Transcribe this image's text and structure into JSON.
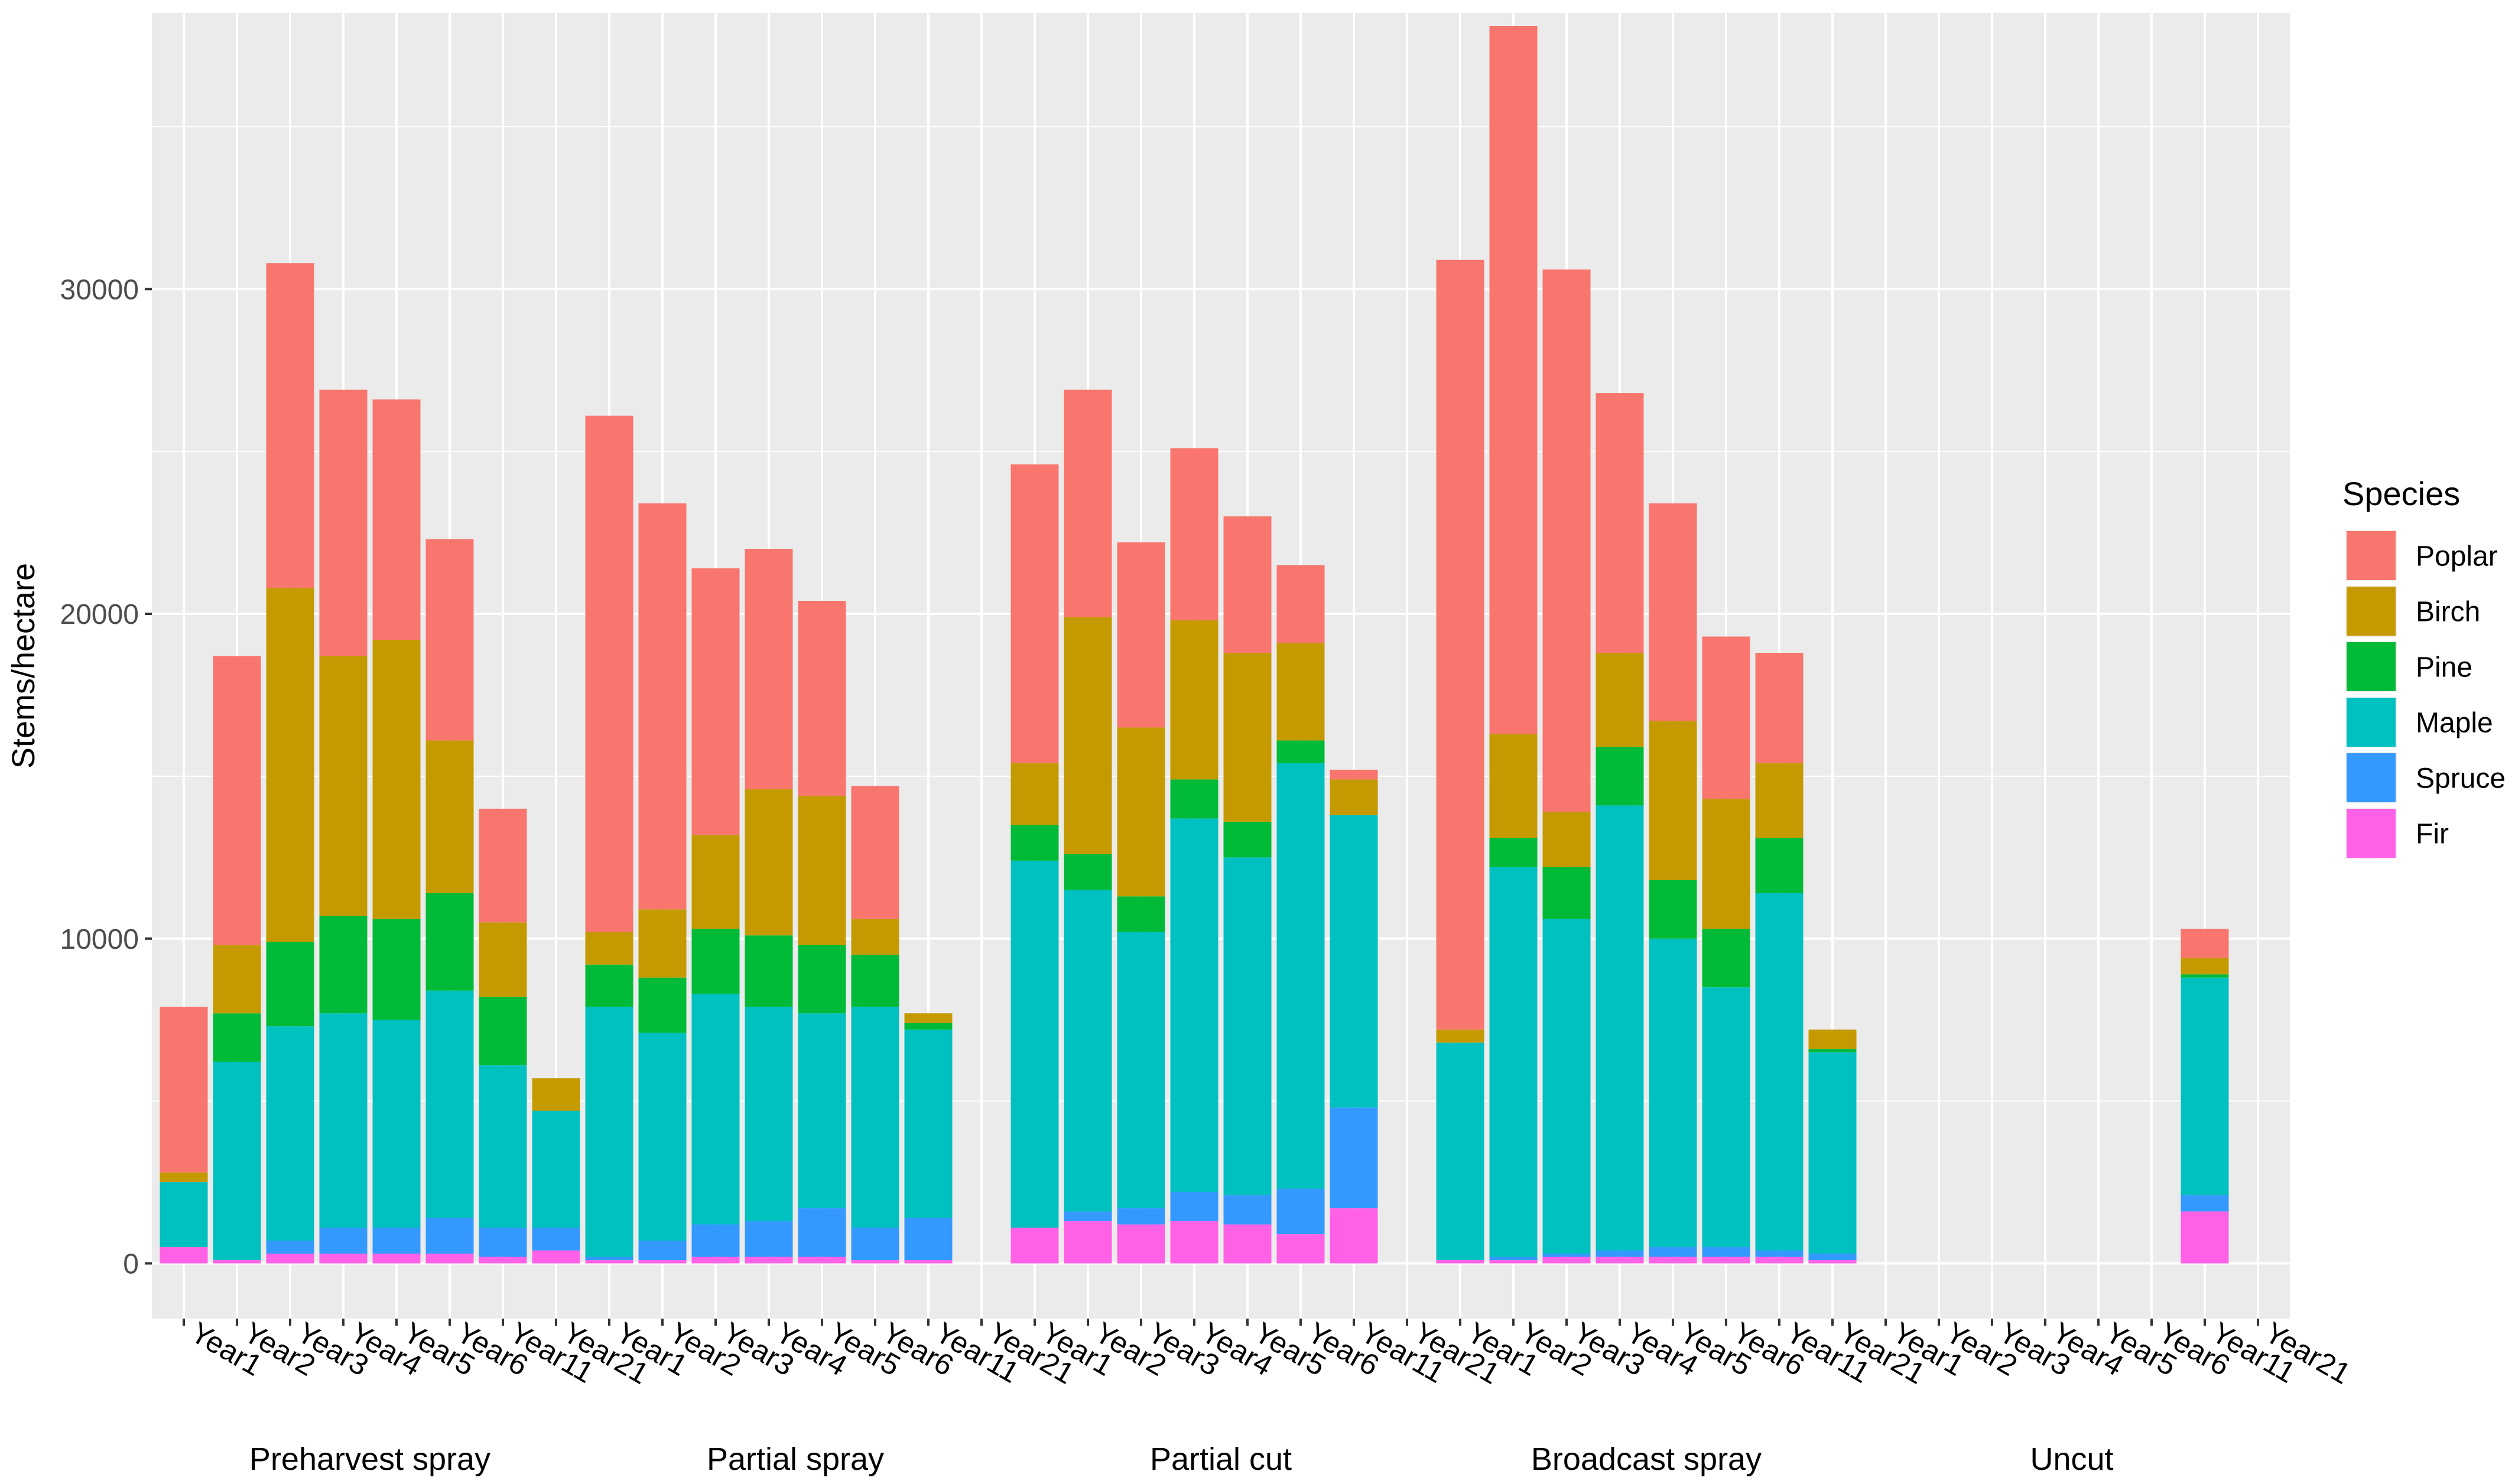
{
  "chart_data": {
    "type": "bar",
    "stacked": true,
    "ylabel": "Stems/hectare",
    "xlabel": "",
    "ylim": [
      -1700,
      38500
    ],
    "yticks": [
      0,
      10000,
      20000,
      30000
    ],
    "ytick_labels": [
      "0",
      "10000",
      "20000",
      "30000"
    ],
    "grid": true,
    "legend": {
      "title": "Species",
      "position": "right",
      "entries": [
        "Poplar",
        "Birch",
        "Pine",
        "Maple",
        "Spruce",
        "Fir"
      ]
    },
    "stack_order_bottom_to_top": [
      "Fir",
      "Spruce",
      "Maple",
      "Pine",
      "Birch",
      "Poplar"
    ],
    "colors": {
      "Poplar": "#F8766D",
      "Birch": "#C49A00",
      "Pine": "#00BA38",
      "Maple": "#00C0C0",
      "Spruce": "#3399FF",
      "Fir": "#FF61E6"
    },
    "years": [
      "Year1",
      "Year2",
      "Year3",
      "Year4",
      "Year5",
      "Year6",
      "Year11",
      "Year21"
    ],
    "groups": [
      {
        "name": "Preharvest spray",
        "bars": [
          {
            "year": "Year1",
            "Fir": 500,
            "Spruce": 0,
            "Maple": 2000,
            "Pine": 0,
            "Birch": 300,
            "Poplar": 5100
          },
          {
            "year": "Year2",
            "Fir": 100,
            "Spruce": 0,
            "Maple": 6100,
            "Pine": 1500,
            "Birch": 2100,
            "Poplar": 8900
          },
          {
            "year": "Year3",
            "Fir": 300,
            "Spruce": 400,
            "Maple": 6600,
            "Pine": 2600,
            "Birch": 10900,
            "Poplar": 10000
          },
          {
            "year": "Year4",
            "Fir": 300,
            "Spruce": 800,
            "Maple": 6600,
            "Pine": 3000,
            "Birch": 8000,
            "Poplar": 8200
          },
          {
            "year": "Year5",
            "Fir": 300,
            "Spruce": 800,
            "Maple": 6400,
            "Pine": 3100,
            "Birch": 8600,
            "Poplar": 7400
          },
          {
            "year": "Year6",
            "Fir": 300,
            "Spruce": 1100,
            "Maple": 7000,
            "Pine": 3000,
            "Birch": 4700,
            "Poplar": 6200
          },
          {
            "year": "Year11",
            "Fir": 200,
            "Spruce": 900,
            "Maple": 5000,
            "Pine": 2100,
            "Birch": 2300,
            "Poplar": 3500
          },
          {
            "year": "Year21",
            "Fir": 400,
            "Spruce": 700,
            "Maple": 3600,
            "Pine": 0,
            "Birch": 1000,
            "Poplar": 0
          }
        ]
      },
      {
        "name": "Partial spray",
        "bars": [
          {
            "year": "Year1",
            "Fir": 100,
            "Spruce": 100,
            "Maple": 7700,
            "Pine": 1300,
            "Birch": 1000,
            "Poplar": 15900
          },
          {
            "year": "Year2",
            "Fir": 100,
            "Spruce": 600,
            "Maple": 6400,
            "Pine": 1700,
            "Birch": 2100,
            "Poplar": 12500
          },
          {
            "year": "Year3",
            "Fir": 200,
            "Spruce": 1000,
            "Maple": 7100,
            "Pine": 2000,
            "Birch": 2900,
            "Poplar": 8200
          },
          {
            "year": "Year4",
            "Fir": 200,
            "Spruce": 1100,
            "Maple": 6600,
            "Pine": 2200,
            "Birch": 4500,
            "Poplar": 7400
          },
          {
            "year": "Year5",
            "Fir": 200,
            "Spruce": 1500,
            "Maple": 6000,
            "Pine": 2100,
            "Birch": 4600,
            "Poplar": 6000
          },
          {
            "year": "Year6",
            "Fir": 100,
            "Spruce": 1000,
            "Maple": 6800,
            "Pine": 1600,
            "Birch": 1100,
            "Poplar": 4100
          },
          {
            "year": "Year11",
            "Fir": 100,
            "Spruce": 1300,
            "Maple": 5800,
            "Pine": 200,
            "Birch": 300,
            "Poplar": 0
          },
          {
            "year": "Year21",
            "Fir": 0,
            "Spruce": 0,
            "Maple": 0,
            "Pine": 0,
            "Birch": 0,
            "Poplar": 0
          }
        ]
      },
      {
        "name": "Partial cut",
        "bars": [
          {
            "year": "Year1",
            "Fir": 1100,
            "Spruce": 0,
            "Maple": 11300,
            "Pine": 1100,
            "Birch": 1900,
            "Poplar": 9200
          },
          {
            "year": "Year2",
            "Fir": 1300,
            "Spruce": 300,
            "Maple": 9900,
            "Pine": 1100,
            "Birch": 7300,
            "Poplar": 7000
          },
          {
            "year": "Year3",
            "Fir": 1200,
            "Spruce": 500,
            "Maple": 8500,
            "Pine": 1100,
            "Birch": 5200,
            "Poplar": 5700
          },
          {
            "year": "Year4",
            "Fir": 1300,
            "Spruce": 900,
            "Maple": 11500,
            "Pine": 1200,
            "Birch": 4900,
            "Poplar": 5300
          },
          {
            "year": "Year5",
            "Fir": 1200,
            "Spruce": 900,
            "Maple": 10400,
            "Pine": 1100,
            "Birch": 5200,
            "Poplar": 4200
          },
          {
            "year": "Year6",
            "Fir": 900,
            "Spruce": 1400,
            "Maple": 13100,
            "Pine": 700,
            "Birch": 3000,
            "Poplar": 2400
          },
          {
            "year": "Year11",
            "Fir": 1700,
            "Spruce": 3100,
            "Maple": 9000,
            "Pine": 0,
            "Birch": 1100,
            "Poplar": 300
          },
          {
            "year": "Year21",
            "Fir": 0,
            "Spruce": 0,
            "Maple": 0,
            "Pine": 0,
            "Birch": 0,
            "Poplar": 0
          }
        ]
      },
      {
        "name": "Broadcast spray",
        "bars": [
          {
            "year": "Year1",
            "Fir": 100,
            "Spruce": 0,
            "Maple": 6700,
            "Pine": 0,
            "Birch": 400,
            "Poplar": 23700
          },
          {
            "year": "Year2",
            "Fir": 100,
            "Spruce": 100,
            "Maple": 12000,
            "Pine": 900,
            "Birch": 3200,
            "Poplar": 21800
          },
          {
            "year": "Year3",
            "Fir": 200,
            "Spruce": 100,
            "Maple": 10300,
            "Pine": 1600,
            "Birch": 1700,
            "Poplar": 16700
          },
          {
            "year": "Year4",
            "Fir": 200,
            "Spruce": 200,
            "Maple": 13700,
            "Pine": 1800,
            "Birch": 2900,
            "Poplar": 8000
          },
          {
            "year": "Year5",
            "Fir": 200,
            "Spruce": 300,
            "Maple": 9500,
            "Pine": 1800,
            "Birch": 4900,
            "Poplar": 6700
          },
          {
            "year": "Year6",
            "Fir": 200,
            "Spruce": 300,
            "Maple": 8000,
            "Pine": 1800,
            "Birch": 4000,
            "Poplar": 5000
          },
          {
            "year": "Year11",
            "Fir": 200,
            "Spruce": 200,
            "Maple": 11000,
            "Pine": 1700,
            "Birch": 2300,
            "Poplar": 3400
          },
          {
            "year": "Year21",
            "Fir": 100,
            "Spruce": 200,
            "Maple": 6200,
            "Pine": 100,
            "Birch": 600,
            "Poplar": 0
          }
        ]
      },
      {
        "name": "Uncut",
        "bars": [
          {
            "year": "Year1",
            "Fir": 0,
            "Spruce": 0,
            "Maple": 0,
            "Pine": 0,
            "Birch": 0,
            "Poplar": 0
          },
          {
            "year": "Year2",
            "Fir": 0,
            "Spruce": 0,
            "Maple": 0,
            "Pine": 0,
            "Birch": 0,
            "Poplar": 0
          },
          {
            "year": "Year3",
            "Fir": 0,
            "Spruce": 0,
            "Maple": 0,
            "Pine": 0,
            "Birch": 0,
            "Poplar": 0
          },
          {
            "year": "Year4",
            "Fir": 0,
            "Spruce": 0,
            "Maple": 0,
            "Pine": 0,
            "Birch": 0,
            "Poplar": 0
          },
          {
            "year": "Year5",
            "Fir": 0,
            "Spruce": 0,
            "Maple": 0,
            "Pine": 0,
            "Birch": 0,
            "Poplar": 0
          },
          {
            "year": "Year6",
            "Fir": 0,
            "Spruce": 0,
            "Maple": 0,
            "Pine": 0,
            "Birch": 0,
            "Poplar": 0
          },
          {
            "year": "Year11",
            "Fir": 1600,
            "Spruce": 500,
            "Maple": 6700,
            "Pine": 100,
            "Birch": 500,
            "Poplar": 900
          },
          {
            "year": "Year21",
            "Fir": 0,
            "Spruce": 0,
            "Maple": 0,
            "Pine": 0,
            "Birch": 0,
            "Poplar": 0
          }
        ]
      }
    ]
  }
}
